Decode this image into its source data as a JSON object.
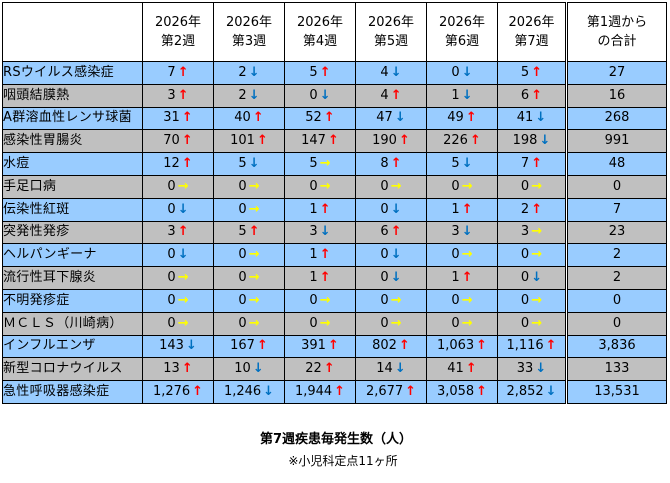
{
  "table": {
    "headers": [
      {
        "line1": "",
        "line2": ""
      },
      {
        "line1": "2026年",
        "line2": "第2週"
      },
      {
        "line1": "2026年",
        "line2": "第3週"
      },
      {
        "line1": "2026年",
        "line2": "第4週"
      },
      {
        "line1": "2026年",
        "line2": "第5週"
      },
      {
        "line1": "2026年",
        "line2": "第6週"
      },
      {
        "line1": "2026年",
        "line2": "第7週"
      },
      {
        "line1": "第1週から",
        "line2": "の合計"
      }
    ],
    "trend_symbols": {
      "up": "↑",
      "down": "↓",
      "flat": "→"
    },
    "colors": {
      "row_blue": "#99CCFF",
      "row_gray": "#C0C0C0",
      "arrow_up": "#FF0000",
      "arrow_down": "#0070C0",
      "arrow_flat": "#FFFF00"
    },
    "rows": [
      {
        "name": "RSウイルス感染症",
        "shade": "blue",
        "cells": [
          {
            "v": "7",
            "t": "up"
          },
          {
            "v": "2",
            "t": "down"
          },
          {
            "v": "5",
            "t": "up"
          },
          {
            "v": "4",
            "t": "down"
          },
          {
            "v": "0",
            "t": "down"
          },
          {
            "v": "5",
            "t": "up"
          }
        ],
        "total": "27"
      },
      {
        "name": "咽頭結膜熱",
        "shade": "gray",
        "cells": [
          {
            "v": "3",
            "t": "up"
          },
          {
            "v": "2",
            "t": "down"
          },
          {
            "v": "0",
            "t": "down"
          },
          {
            "v": "4",
            "t": "up"
          },
          {
            "v": "1",
            "t": "down"
          },
          {
            "v": "6",
            "t": "up"
          }
        ],
        "total": "16"
      },
      {
        "name": "A群溶血性レンサ球菌",
        "shade": "blue",
        "cells": [
          {
            "v": "31",
            "t": "up"
          },
          {
            "v": "40",
            "t": "up"
          },
          {
            "v": "52",
            "t": "up"
          },
          {
            "v": "47",
            "t": "down"
          },
          {
            "v": "49",
            "t": "up"
          },
          {
            "v": "41",
            "t": "down"
          }
        ],
        "total": "268"
      },
      {
        "name": "感染性胃腸炎",
        "shade": "gray",
        "cells": [
          {
            "v": "70",
            "t": "up"
          },
          {
            "v": "101",
            "t": "up"
          },
          {
            "v": "147",
            "t": "up"
          },
          {
            "v": "190",
            "t": "up"
          },
          {
            "v": "226",
            "t": "up"
          },
          {
            "v": "198",
            "t": "down"
          }
        ],
        "total": "991"
      },
      {
        "name": "水痘",
        "shade": "blue",
        "cells": [
          {
            "v": "12",
            "t": "up"
          },
          {
            "v": "5",
            "t": "down"
          },
          {
            "v": "5",
            "t": "flat"
          },
          {
            "v": "8",
            "t": "up"
          },
          {
            "v": "5",
            "t": "down"
          },
          {
            "v": "7",
            "t": "up"
          }
        ],
        "total": "48"
      },
      {
        "name": "手足口病",
        "shade": "gray",
        "cells": [
          {
            "v": "0",
            "t": "flat"
          },
          {
            "v": "0",
            "t": "flat"
          },
          {
            "v": "0",
            "t": "flat"
          },
          {
            "v": "0",
            "t": "flat"
          },
          {
            "v": "0",
            "t": "flat"
          },
          {
            "v": "0",
            "t": "flat"
          }
        ],
        "total": "0"
      },
      {
        "name": "伝染性紅斑",
        "shade": "blue",
        "cells": [
          {
            "v": "0",
            "t": "down"
          },
          {
            "v": "0",
            "t": "flat"
          },
          {
            "v": "1",
            "t": "up"
          },
          {
            "v": "0",
            "t": "down"
          },
          {
            "v": "1",
            "t": "up"
          },
          {
            "v": "2",
            "t": "up"
          }
        ],
        "total": "7"
      },
      {
        "name": "突発性発疹",
        "shade": "gray",
        "cells": [
          {
            "v": "3",
            "t": "up"
          },
          {
            "v": "5",
            "t": "up"
          },
          {
            "v": "3",
            "t": "down"
          },
          {
            "v": "6",
            "t": "up"
          },
          {
            "v": "3",
            "t": "down"
          },
          {
            "v": "3",
            "t": "flat"
          }
        ],
        "total": "23"
      },
      {
        "name": "ヘルパンギーナ",
        "shade": "blue",
        "cells": [
          {
            "v": "0",
            "t": "down"
          },
          {
            "v": "0",
            "t": "flat"
          },
          {
            "v": "1",
            "t": "up"
          },
          {
            "v": "0",
            "t": "down"
          },
          {
            "v": "0",
            "t": "flat"
          },
          {
            "v": "0",
            "t": "flat"
          }
        ],
        "total": "2"
      },
      {
        "name": "流行性耳下腺炎",
        "shade": "gray",
        "cells": [
          {
            "v": "0",
            "t": "flat"
          },
          {
            "v": "0",
            "t": "flat"
          },
          {
            "v": "1",
            "t": "up"
          },
          {
            "v": "0",
            "t": "down"
          },
          {
            "v": "1",
            "t": "up"
          },
          {
            "v": "0",
            "t": "down"
          }
        ],
        "total": "2"
      },
      {
        "name": "不明発疹症",
        "shade": "blue",
        "cells": [
          {
            "v": "0",
            "t": "flat"
          },
          {
            "v": "0",
            "t": "flat"
          },
          {
            "v": "0",
            "t": "flat"
          },
          {
            "v": "0",
            "t": "flat"
          },
          {
            "v": "0",
            "t": "flat"
          },
          {
            "v": "0",
            "t": "flat"
          }
        ],
        "total": "0"
      },
      {
        "name": "ＭＣＬＳ（川崎病）",
        "shade": "gray",
        "cells": [
          {
            "v": "0",
            "t": "flat"
          },
          {
            "v": "0",
            "t": "flat"
          },
          {
            "v": "0",
            "t": "flat"
          },
          {
            "v": "0",
            "t": "flat"
          },
          {
            "v": "0",
            "t": "flat"
          },
          {
            "v": "0",
            "t": "flat"
          }
        ],
        "total": "0"
      },
      {
        "name": "インフルエンザ",
        "shade": "blue",
        "cells": [
          {
            "v": "143",
            "t": "down"
          },
          {
            "v": "167",
            "t": "up"
          },
          {
            "v": "391",
            "t": "up"
          },
          {
            "v": "802",
            "t": "up"
          },
          {
            "v": "1,063",
            "t": "up"
          },
          {
            "v": "1,116",
            "t": "up"
          }
        ],
        "total": "3,836"
      },
      {
        "name": "新型コロナウイルス",
        "shade": "gray",
        "cells": [
          {
            "v": "13",
            "t": "up"
          },
          {
            "v": "10",
            "t": "down"
          },
          {
            "v": "22",
            "t": "up"
          },
          {
            "v": "14",
            "t": "down"
          },
          {
            "v": "41",
            "t": "up"
          },
          {
            "v": "33",
            "t": "down"
          }
        ],
        "total": "133"
      },
      {
        "name": "急性呼吸器感染症",
        "shade": "blue",
        "cells": [
          {
            "v": "1,276",
            "t": "up"
          },
          {
            "v": "1,246",
            "t": "down"
          },
          {
            "v": "1,944",
            "t": "up"
          },
          {
            "v": "2,677",
            "t": "up"
          },
          {
            "v": "3,058",
            "t": "up"
          },
          {
            "v": "2,852",
            "t": "down"
          }
        ],
        "total": "13,531"
      }
    ]
  },
  "caption": {
    "title": "第7週疾患毎発生数（人）",
    "note": "※小児科定点11ヶ所"
  }
}
